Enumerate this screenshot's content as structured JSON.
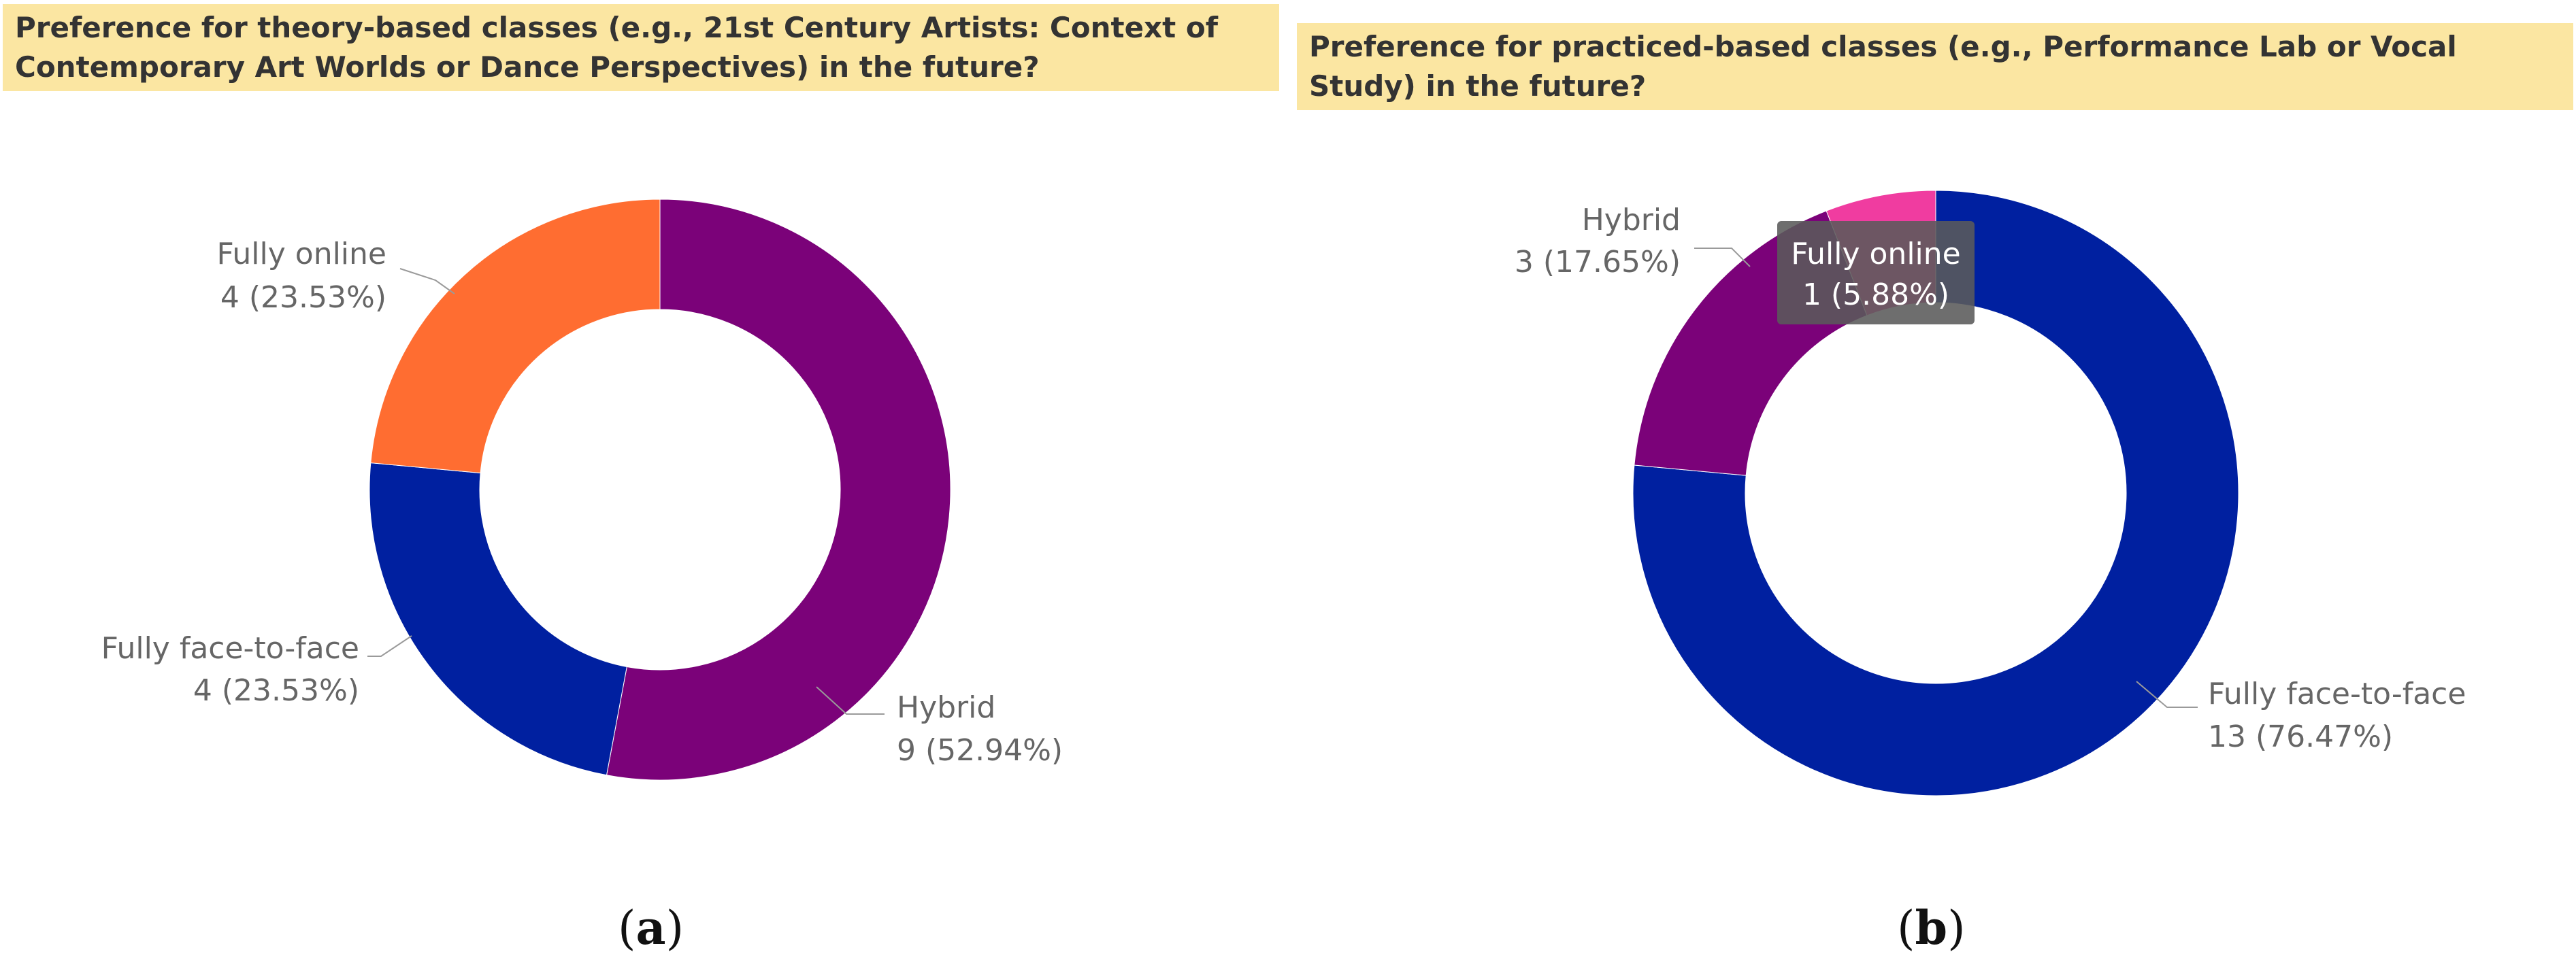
{
  "chart_data": [
    {
      "type": "pie",
      "donut": true,
      "title": "Preference for theory-based classes (e.g., 21st Century Artists: Context of Contemporary Art Worlds or Dance Perspectives) in the future?",
      "total": 17,
      "slices": [
        {
          "name": "Hybrid",
          "value": 9,
          "pct": "52.94%",
          "color": "#7b0279",
          "label": "9 (52.94%)"
        },
        {
          "name": "Fully face-to-face",
          "value": 4,
          "pct": "23.53%",
          "color": "#0020a0",
          "label": "4 (23.53%)"
        },
        {
          "name": "Fully online",
          "value": 4,
          "pct": "23.53%",
          "color": "#ff6d31",
          "label": "4 (23.53%)"
        }
      ],
      "panel": "a"
    },
    {
      "type": "pie",
      "donut": true,
      "title": "Preference for practiced-based classes (e.g., Performance Lab or Vocal Study) in the future?",
      "total": 17,
      "slices": [
        {
          "name": "Fully face-to-face",
          "value": 13,
          "pct": "76.47%",
          "color": "#0020a0",
          "label": "13 (76.47%)"
        },
        {
          "name": "Hybrid",
          "value": 3,
          "pct": "17.65%",
          "color": "#7b0279",
          "label": "3 (17.65%)"
        },
        {
          "name": "Fully online",
          "value": 1,
          "pct": "5.88%",
          "color": "#f03ca0",
          "label": "1 (5.88%)"
        }
      ],
      "tooltip": {
        "name": "Fully online",
        "label": "1 (5.88%)"
      },
      "panel": "b"
    }
  ],
  "colors": {
    "title_bg": "#fbe6a2",
    "leader": "#9a9a9a",
    "tooltip_bg": "#5a5a5a"
  }
}
